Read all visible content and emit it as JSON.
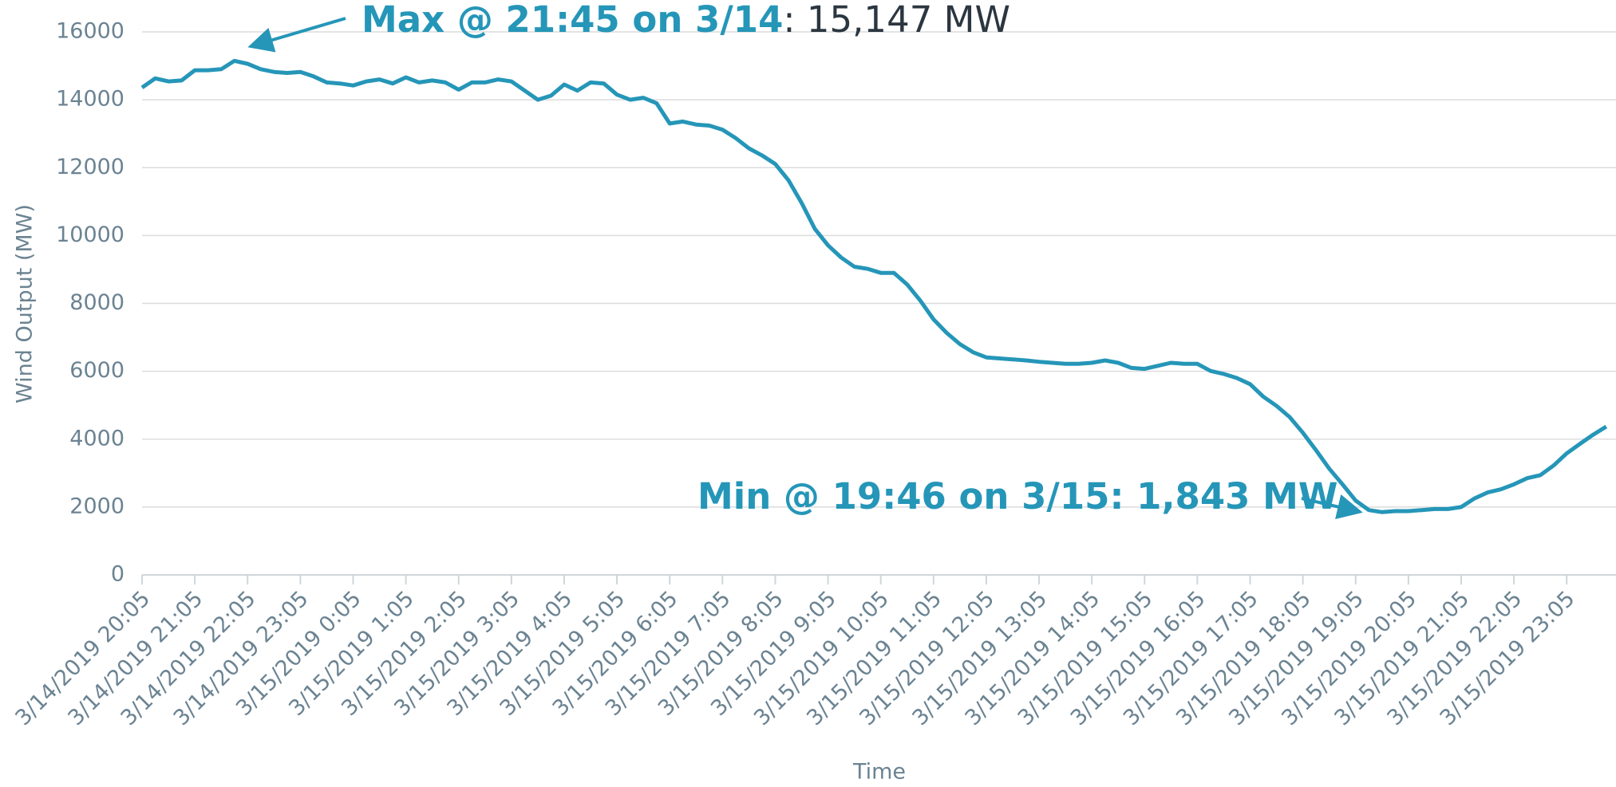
{
  "chart_data": {
    "type": "line",
    "y_label": "Wind Output (MW)",
    "x_label": "Time",
    "annotations": [
      {
        "bold": "Max @ 21:45 on 3/14",
        "rest": ": 15,147 MW"
      },
      {
        "bold": "Min @ 19:46 on 3/15: 1,843 MW"
      }
    ],
    "categories": [
      "3/14/2019 20:05",
      null,
      null,
      null,
      "3/14/2019 21:05",
      null,
      null,
      null,
      "3/14/2019 22:05",
      null,
      null,
      null,
      "3/14/2019 23:05",
      null,
      null,
      null,
      "3/15/2019 0:05",
      null,
      null,
      null,
      "3/15/2019 1:05",
      null,
      null,
      null,
      "3/15/2019 2:05",
      null,
      null,
      null,
      "3/15/2019 3:05",
      null,
      null,
      null,
      "3/15/2019 4:05",
      null,
      null,
      null,
      "3/15/2019 5:05",
      null,
      null,
      null,
      "3/15/2019 6:05",
      null,
      null,
      null,
      "3/15/2019 7:05",
      null,
      null,
      null,
      "3/15/2019 8:05",
      null,
      null,
      null,
      "3/15/2019 9:05",
      null,
      null,
      null,
      "3/15/2019 10:05",
      null,
      null,
      null,
      "3/15/2019 11:05",
      null,
      null,
      null,
      "3/15/2019 12:05",
      null,
      null,
      null,
      "3/15/2019 13:05",
      null,
      null,
      null,
      "3/15/2019 14:05",
      null,
      null,
      null,
      "3/15/2019 15:05",
      null,
      null,
      null,
      "3/15/2019 16:05",
      null,
      null,
      null,
      "3/15/2019 17:05",
      null,
      null,
      null,
      "3/15/2019 18:05",
      null,
      null,
      null,
      "3/15/2019 19:05",
      null,
      null,
      null,
      "3/15/2019 20:05",
      null,
      null,
      null,
      "3/15/2019 21:05",
      null,
      null,
      null,
      "3/15/2019 22:05",
      null,
      null,
      null,
      "3/15/2019 23:05",
      null,
      null,
      null
    ],
    "values": [
      14360,
      14630,
      14540,
      14570,
      14870,
      14870,
      14900,
      15147,
      15060,
      14900,
      14820,
      14790,
      14820,
      14690,
      14510,
      14480,
      14420,
      14540,
      14600,
      14480,
      14660,
      14510,
      14570,
      14510,
      14300,
      14510,
      14510,
      14600,
      14540,
      14270,
      14000,
      14120,
      14450,
      14270,
      14510,
      14480,
      14150,
      14000,
      14060,
      13900,
      13300,
      13360,
      13270,
      13240,
      13120,
      12870,
      12570,
      12360,
      12110,
      11630,
      10960,
      10200,
      9710,
      9350,
      9080,
      9020,
      8900,
      8900,
      8560,
      8080,
      7530,
      7130,
      6800,
      6560,
      6410,
      6380,
      6350,
      6320,
      6280,
      6250,
      6220,
      6220,
      6250,
      6320,
      6250,
      6100,
      6070,
      6160,
      6250,
      6220,
      6220,
      6010,
      5920,
      5800,
      5620,
      5250,
      4980,
      4650,
      4190,
      3670,
      3130,
      2670,
      2190,
      1910,
      1850,
      1880,
      1880,
      1910,
      1940,
      1940,
      2000,
      2250,
      2430,
      2520,
      2670,
      2850,
      2940,
      3220,
      3580,
      3860,
      4130,
      4370
    ],
    "color": "#2596b8",
    "ylim": [
      0,
      16000
    ],
    "yticks": [
      0,
      2000,
      4000,
      6000,
      8000,
      10000,
      12000,
      14000,
      16000
    ],
    "grid": true
  }
}
